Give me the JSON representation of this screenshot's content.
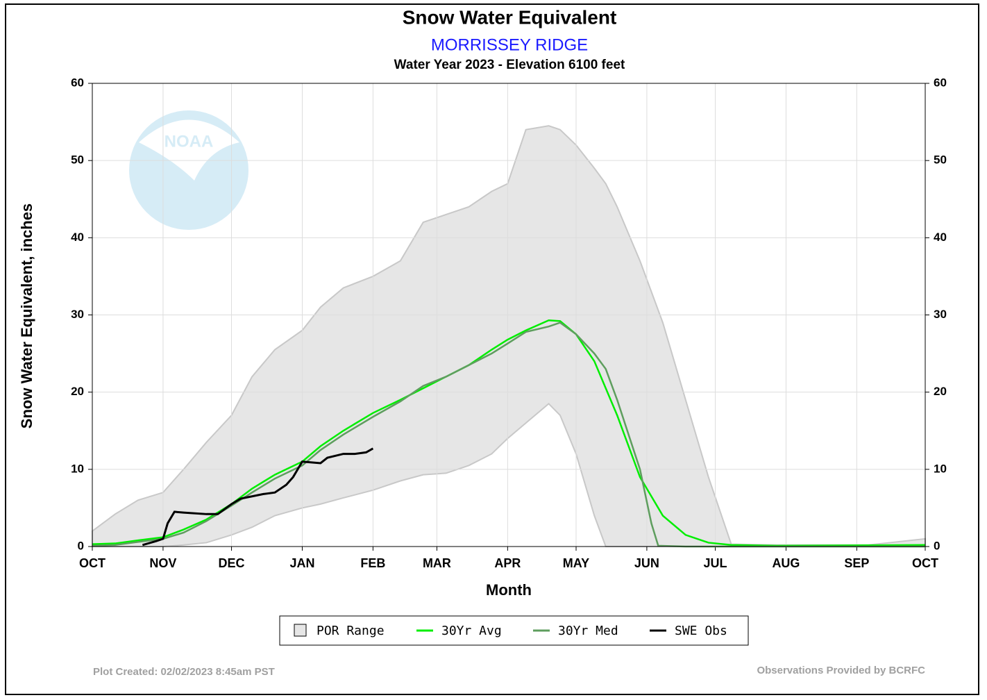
{
  "chart_data": {
    "type": "line",
    "title": "Snow Water Equivalent",
    "subtitle": "MORRISSEY RIDGE",
    "subtitle2": "Water Year 2023 -  Elevation 6100 feet",
    "x_label": "Month",
    "y_label": "Snow Water Equivalent, inches",
    "xlim": [
      0,
      365
    ],
    "ylim": [
      0,
      60
    ],
    "xticks": [
      {
        "value": 0,
        "label": "OCT"
      },
      {
        "value": 31,
        "label": "NOV"
      },
      {
        "value": 61,
        "label": "DEC"
      },
      {
        "value": 92,
        "label": "JAN"
      },
      {
        "value": 123,
        "label": "FEB"
      },
      {
        "value": 151,
        "label": "MAR"
      },
      {
        "value": 182,
        "label": "APR"
      },
      {
        "value": 212,
        "label": "MAY"
      },
      {
        "value": 243,
        "label": "JUN"
      },
      {
        "value": 273,
        "label": "JUL"
      },
      {
        "value": 304,
        "label": "AUG"
      },
      {
        "value": 335,
        "label": "SEP"
      },
      {
        "value": 365,
        "label": "OCT"
      }
    ],
    "yticks": [
      0,
      10,
      20,
      30,
      40,
      50,
      60
    ],
    "grid": true,
    "range": {
      "name": "POR Range",
      "color": "#e6e6e6",
      "x": [
        0,
        10,
        20,
        31,
        40,
        50,
        61,
        70,
        80,
        92,
        100,
        110,
        123,
        135,
        145,
        155,
        165,
        175,
        182,
        190,
        200,
        205,
        212,
        220,
        225,
        230,
        240,
        250,
        260,
        270,
        280,
        300,
        340,
        365
      ],
      "upper": [
        2,
        4.2,
        6,
        7,
        10,
        13.5,
        17,
        22,
        25.5,
        28,
        31,
        33.5,
        35,
        37,
        42,
        43,
        44,
        46,
        47,
        54,
        54.5,
        54,
        52,
        49,
        47,
        44,
        37,
        29,
        19,
        9,
        0.3,
        0.2,
        0.2,
        1
      ],
      "lower": [
        0,
        0,
        0,
        0,
        0.2,
        0.5,
        1.5,
        2.5,
        4,
        5,
        5.5,
        6.3,
        7.3,
        8.5,
        9.3,
        9.5,
        10.5,
        12,
        14,
        16,
        18.5,
        17,
        12,
        4,
        0,
        0,
        0,
        0,
        0,
        0,
        0,
        0,
        0,
        0
      ]
    },
    "series": [
      {
        "name": "30Yr Avg",
        "color": "#00ee00",
        "x": [
          0,
          10,
          20,
          31,
          40,
          50,
          61,
          70,
          80,
          92,
          100,
          110,
          123,
          135,
          145,
          155,
          165,
          175,
          182,
          190,
          200,
          205,
          212,
          220,
          230,
          240,
          250,
          260,
          270,
          280,
          300,
          365
        ],
        "values": [
          0.3,
          0.4,
          0.8,
          1.2,
          2.2,
          3.5,
          5.5,
          7.5,
          9.3,
          11,
          13,
          15,
          17.3,
          19,
          20.5,
          22,
          23.5,
          25.5,
          26.8,
          28,
          29.3,
          29.2,
          27.5,
          24,
          17,
          9,
          4,
          1.5,
          0.5,
          0.2,
          0.1,
          0.2
        ]
      },
      {
        "name": "30Yr Med",
        "color": "#5e9e5e",
        "x": [
          0,
          10,
          20,
          31,
          40,
          50,
          61,
          70,
          80,
          92,
          100,
          110,
          123,
          135,
          145,
          155,
          165,
          175,
          182,
          190,
          200,
          205,
          212,
          220,
          225,
          230,
          240,
          245,
          248,
          260,
          365
        ],
        "values": [
          0.1,
          0.2,
          0.6,
          1,
          1.8,
          3.3,
          5.3,
          7,
          8.8,
          10.5,
          12.5,
          14.5,
          16.8,
          18.8,
          20.8,
          22,
          23.5,
          25,
          26.3,
          27.8,
          28.5,
          29,
          27.5,
          25,
          23,
          19,
          10,
          3,
          0.1,
          0,
          0
        ]
      },
      {
        "name": "SWE Obs",
        "color": "#000000",
        "x": [
          22,
          28,
          31,
          33,
          36,
          40,
          50,
          55,
          61,
          65,
          70,
          75,
          80,
          85,
          88,
          92,
          100,
          103,
          110,
          115,
          120,
          123
        ],
        "values": [
          0.2,
          0.7,
          1,
          3,
          4.5,
          4.4,
          4.2,
          4.2,
          5.5,
          6.2,
          6.5,
          6.8,
          7,
          8,
          9,
          11,
          10.8,
          11.5,
          12,
          12,
          12.2,
          12.7
        ]
      }
    ],
    "footer_left": "Plot Created: 02/02/2023 8:45am PST",
    "footer_right": "Observations Provided by BCRFC"
  }
}
